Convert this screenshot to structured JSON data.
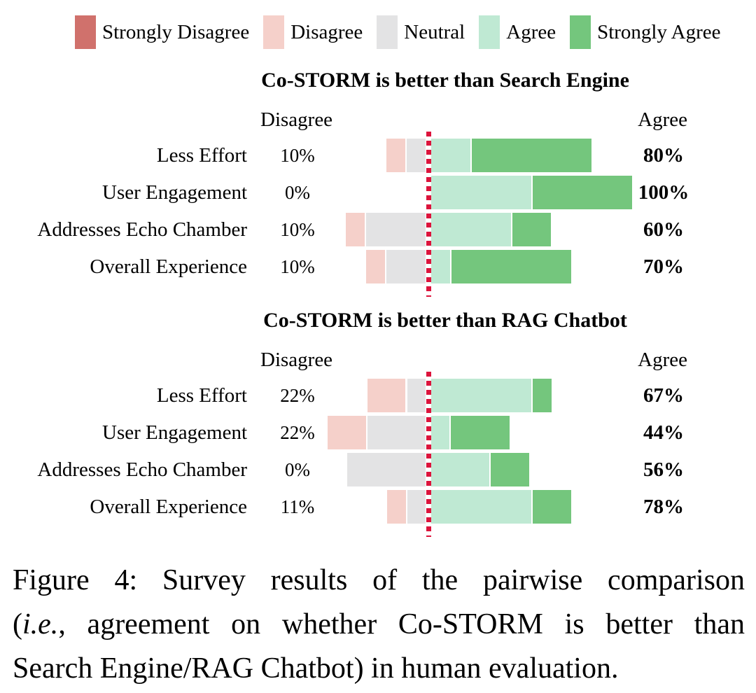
{
  "legend": {
    "items": [
      "Strongly Disagree",
      "Disagree",
      "Neutral",
      "Agree",
      "Strongly Agree"
    ]
  },
  "colors": {
    "Strongly Disagree": "#d0716c",
    "Disagree": "#f5d0ca",
    "Neutral": "#e3e3e4",
    "Agree": "#bfe9d3",
    "Strongly Agree": "#74c67d",
    "zero_line": "#dc143c"
  },
  "chart_data": [
    {
      "type": "bar",
      "variant": "diverging-stacked-likert",
      "title": "Co-STORM is better than Search Engine",
      "axis_headers": {
        "left": "Disagree",
        "right": "Agree"
      },
      "categories": [
        "Less Effort",
        "User Engagement",
        "Addresses Echo Chamber",
        "Overall Experience"
      ],
      "series": [
        {
          "name": "Strongly Disagree",
          "values": [
            0,
            0,
            0,
            0
          ]
        },
        {
          "name": "Disagree",
          "values": [
            10,
            0,
            10,
            10
          ]
        },
        {
          "name": "Neutral",
          "values": [
            10,
            0,
            30,
            20
          ]
        },
        {
          "name": "Agree",
          "values": [
            20,
            50,
            40,
            10
          ]
        },
        {
          "name": "Strongly Agree",
          "values": [
            60,
            50,
            20,
            60
          ]
        }
      ],
      "disagree_labels": [
        "10%",
        "0%",
        "10%",
        "10%"
      ],
      "agree_labels": [
        "80%",
        "100%",
        "60%",
        "70%"
      ],
      "values_unit": "percent"
    },
    {
      "type": "bar",
      "variant": "diverging-stacked-likert",
      "title": "Co-STORM is better than RAG Chatbot",
      "axis_headers": {
        "left": "Disagree",
        "right": "Agree"
      },
      "categories": [
        "Less Effort",
        "User Engagement",
        "Addresses Echo Chamber",
        "Overall Experience"
      ],
      "series": [
        {
          "name": "Strongly Disagree",
          "values": [
            0,
            0,
            0,
            0
          ]
        },
        {
          "name": "Disagree",
          "values": [
            22,
            22,
            0,
            11
          ]
        },
        {
          "name": "Neutral",
          "values": [
            11,
            33,
            44,
            11
          ]
        },
        {
          "name": "Agree",
          "values": [
            56,
            11,
            33,
            56
          ]
        },
        {
          "name": "Strongly Agree",
          "values": [
            11,
            33,
            22,
            22
          ]
        }
      ],
      "disagree_labels": [
        "22%",
        "22%",
        "0%",
        "11%"
      ],
      "agree_labels": [
        "67%",
        "44%",
        "56%",
        "78%"
      ],
      "values_unit": "percent"
    }
  ],
  "caption": {
    "line1": "Figure 4: Survey results of the pairwise comparison",
    "line2_pre": "(",
    "line2_italic": "i.e.",
    "line2_post": ", agreement on whether Co-STORM is better than",
    "line3": "Search Engine/RAG Chatbot) in human evaluation."
  }
}
